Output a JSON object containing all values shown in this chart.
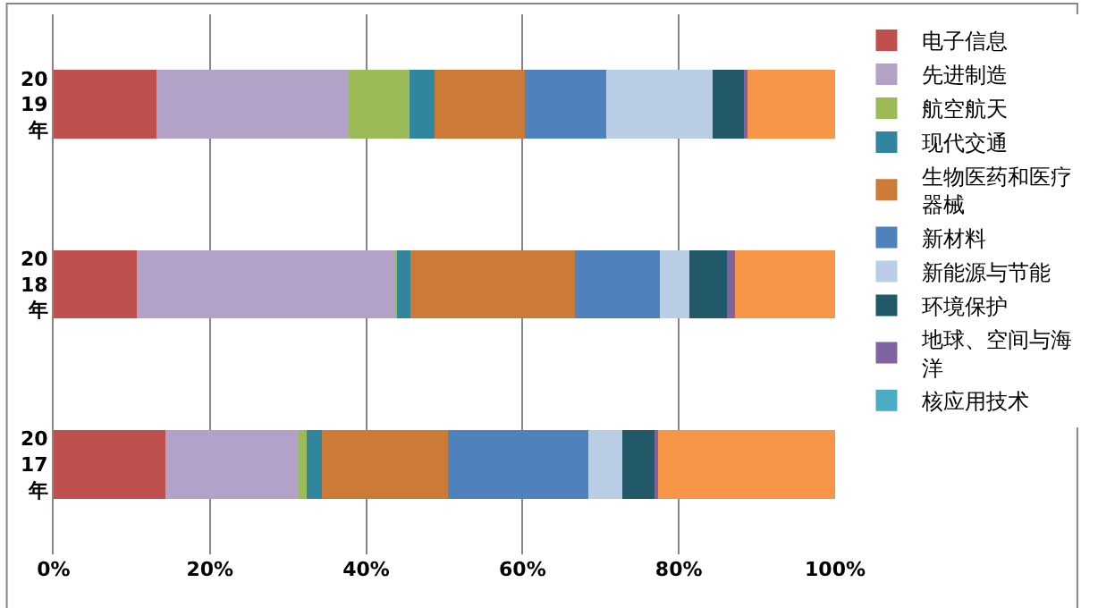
{
  "chart_data": {
    "type": "bar",
    "orientation": "horizontal",
    "stacked": true,
    "categories": [
      "2019年",
      "2018年",
      "2017年"
    ],
    "series": [
      {
        "name": "电子信息",
        "color": "#c0504d",
        "values": [
          13.1,
          10.6,
          14.3
        ]
      },
      {
        "name": "先进制造",
        "color": "#b2a2c7",
        "values": [
          24.7,
          33.2,
          17.0
        ]
      },
      {
        "name": "航空航天",
        "color": "#9bbb59",
        "values": [
          7.7,
          0.1,
          1.1
        ]
      },
      {
        "name": "现代交通",
        "color": "#31859c",
        "values": [
          3.2,
          1.8,
          1.9
        ]
      },
      {
        "name": "生物医药和医疗器械",
        "color": "#cb7b37",
        "values": [
          11.6,
          21.0,
          16.2
        ]
      },
      {
        "name": "新材料",
        "color": "#4f81bd",
        "values": [
          10.4,
          10.9,
          17.9
        ]
      },
      {
        "name": "新能源与节能",
        "color": "#b9cde5",
        "values": [
          13.6,
          3.7,
          4.4
        ]
      },
      {
        "name": "环境保护",
        "color": "#215968",
        "values": [
          4.1,
          4.8,
          4.3
        ]
      },
      {
        "name": "地球、空间与海洋",
        "color": "#8064a2",
        "values": [
          0.4,
          1.1,
          0.3
        ]
      },
      {
        "name": "核应用技术",
        "color": "#4bacc6",
        "values": [
          0,
          0,
          0
        ]
      },
      {
        "color": "#f79646",
        "values": [
          11.2,
          12.8,
          22.6
        ]
      }
    ],
    "xlim": [
      0,
      100
    ],
    "xticks": [
      {
        "value": 0,
        "label": "0%"
      },
      {
        "value": 20,
        "label": "20%"
      },
      {
        "value": 40,
        "label": "40%"
      },
      {
        "value": 60,
        "label": "60%"
      },
      {
        "value": 80,
        "label": "80%"
      },
      {
        "value": 100,
        "label": "100%"
      }
    ],
    "grid": "x",
    "legend": "right"
  }
}
